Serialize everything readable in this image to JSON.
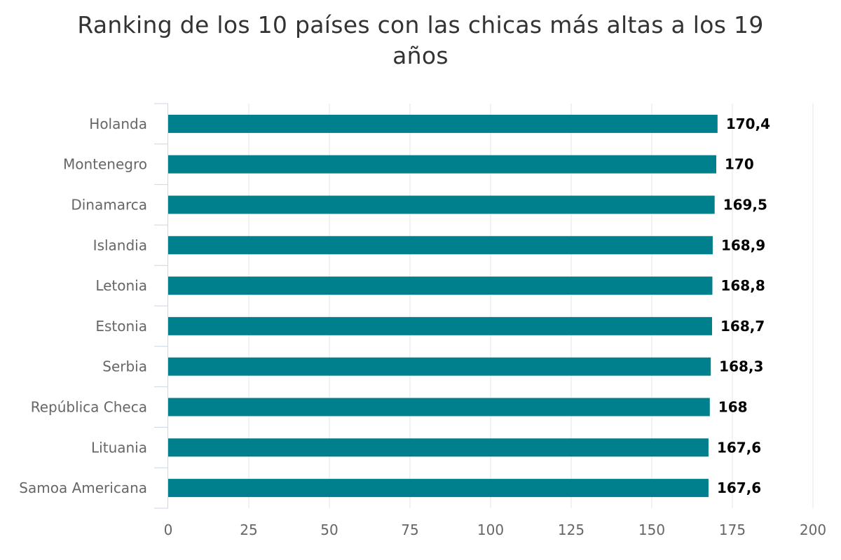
{
  "chart_data": {
    "type": "bar",
    "orientation": "horizontal",
    "title": "Ranking de los 10 países con las chicas más altas a los 19 años",
    "xlabel": "",
    "ylabel": "",
    "categories": [
      "Holanda",
      "Montenegro",
      "Dinamarca",
      "Islandia",
      "Letonia",
      "Estonia",
      "Serbia",
      "República Checa",
      "Lituania",
      "Samoa Americana"
    ],
    "series": [
      {
        "values": [
          170.4,
          170,
          169.5,
          168.9,
          168.8,
          168.7,
          168.3,
          168,
          167.6,
          167.6
        ],
        "value_labels": [
          "170,4",
          "170",
          "169,5",
          "168,9",
          "168,8",
          "168,7",
          "168,3",
          "168",
          "167,6",
          "167,6"
        ],
        "color": "#007F8C"
      }
    ],
    "value_axis": {
      "range": [
        0,
        200
      ],
      "ticks": [
        0,
        25,
        50,
        75,
        100,
        125,
        150,
        175,
        200
      ]
    },
    "grid": true,
    "legend": "none"
  },
  "colors": {
    "bar": "#007F8C",
    "grid": "#e6e6e6",
    "axis": "#ccd6eb",
    "label": "#666666",
    "title": "#333333"
  }
}
